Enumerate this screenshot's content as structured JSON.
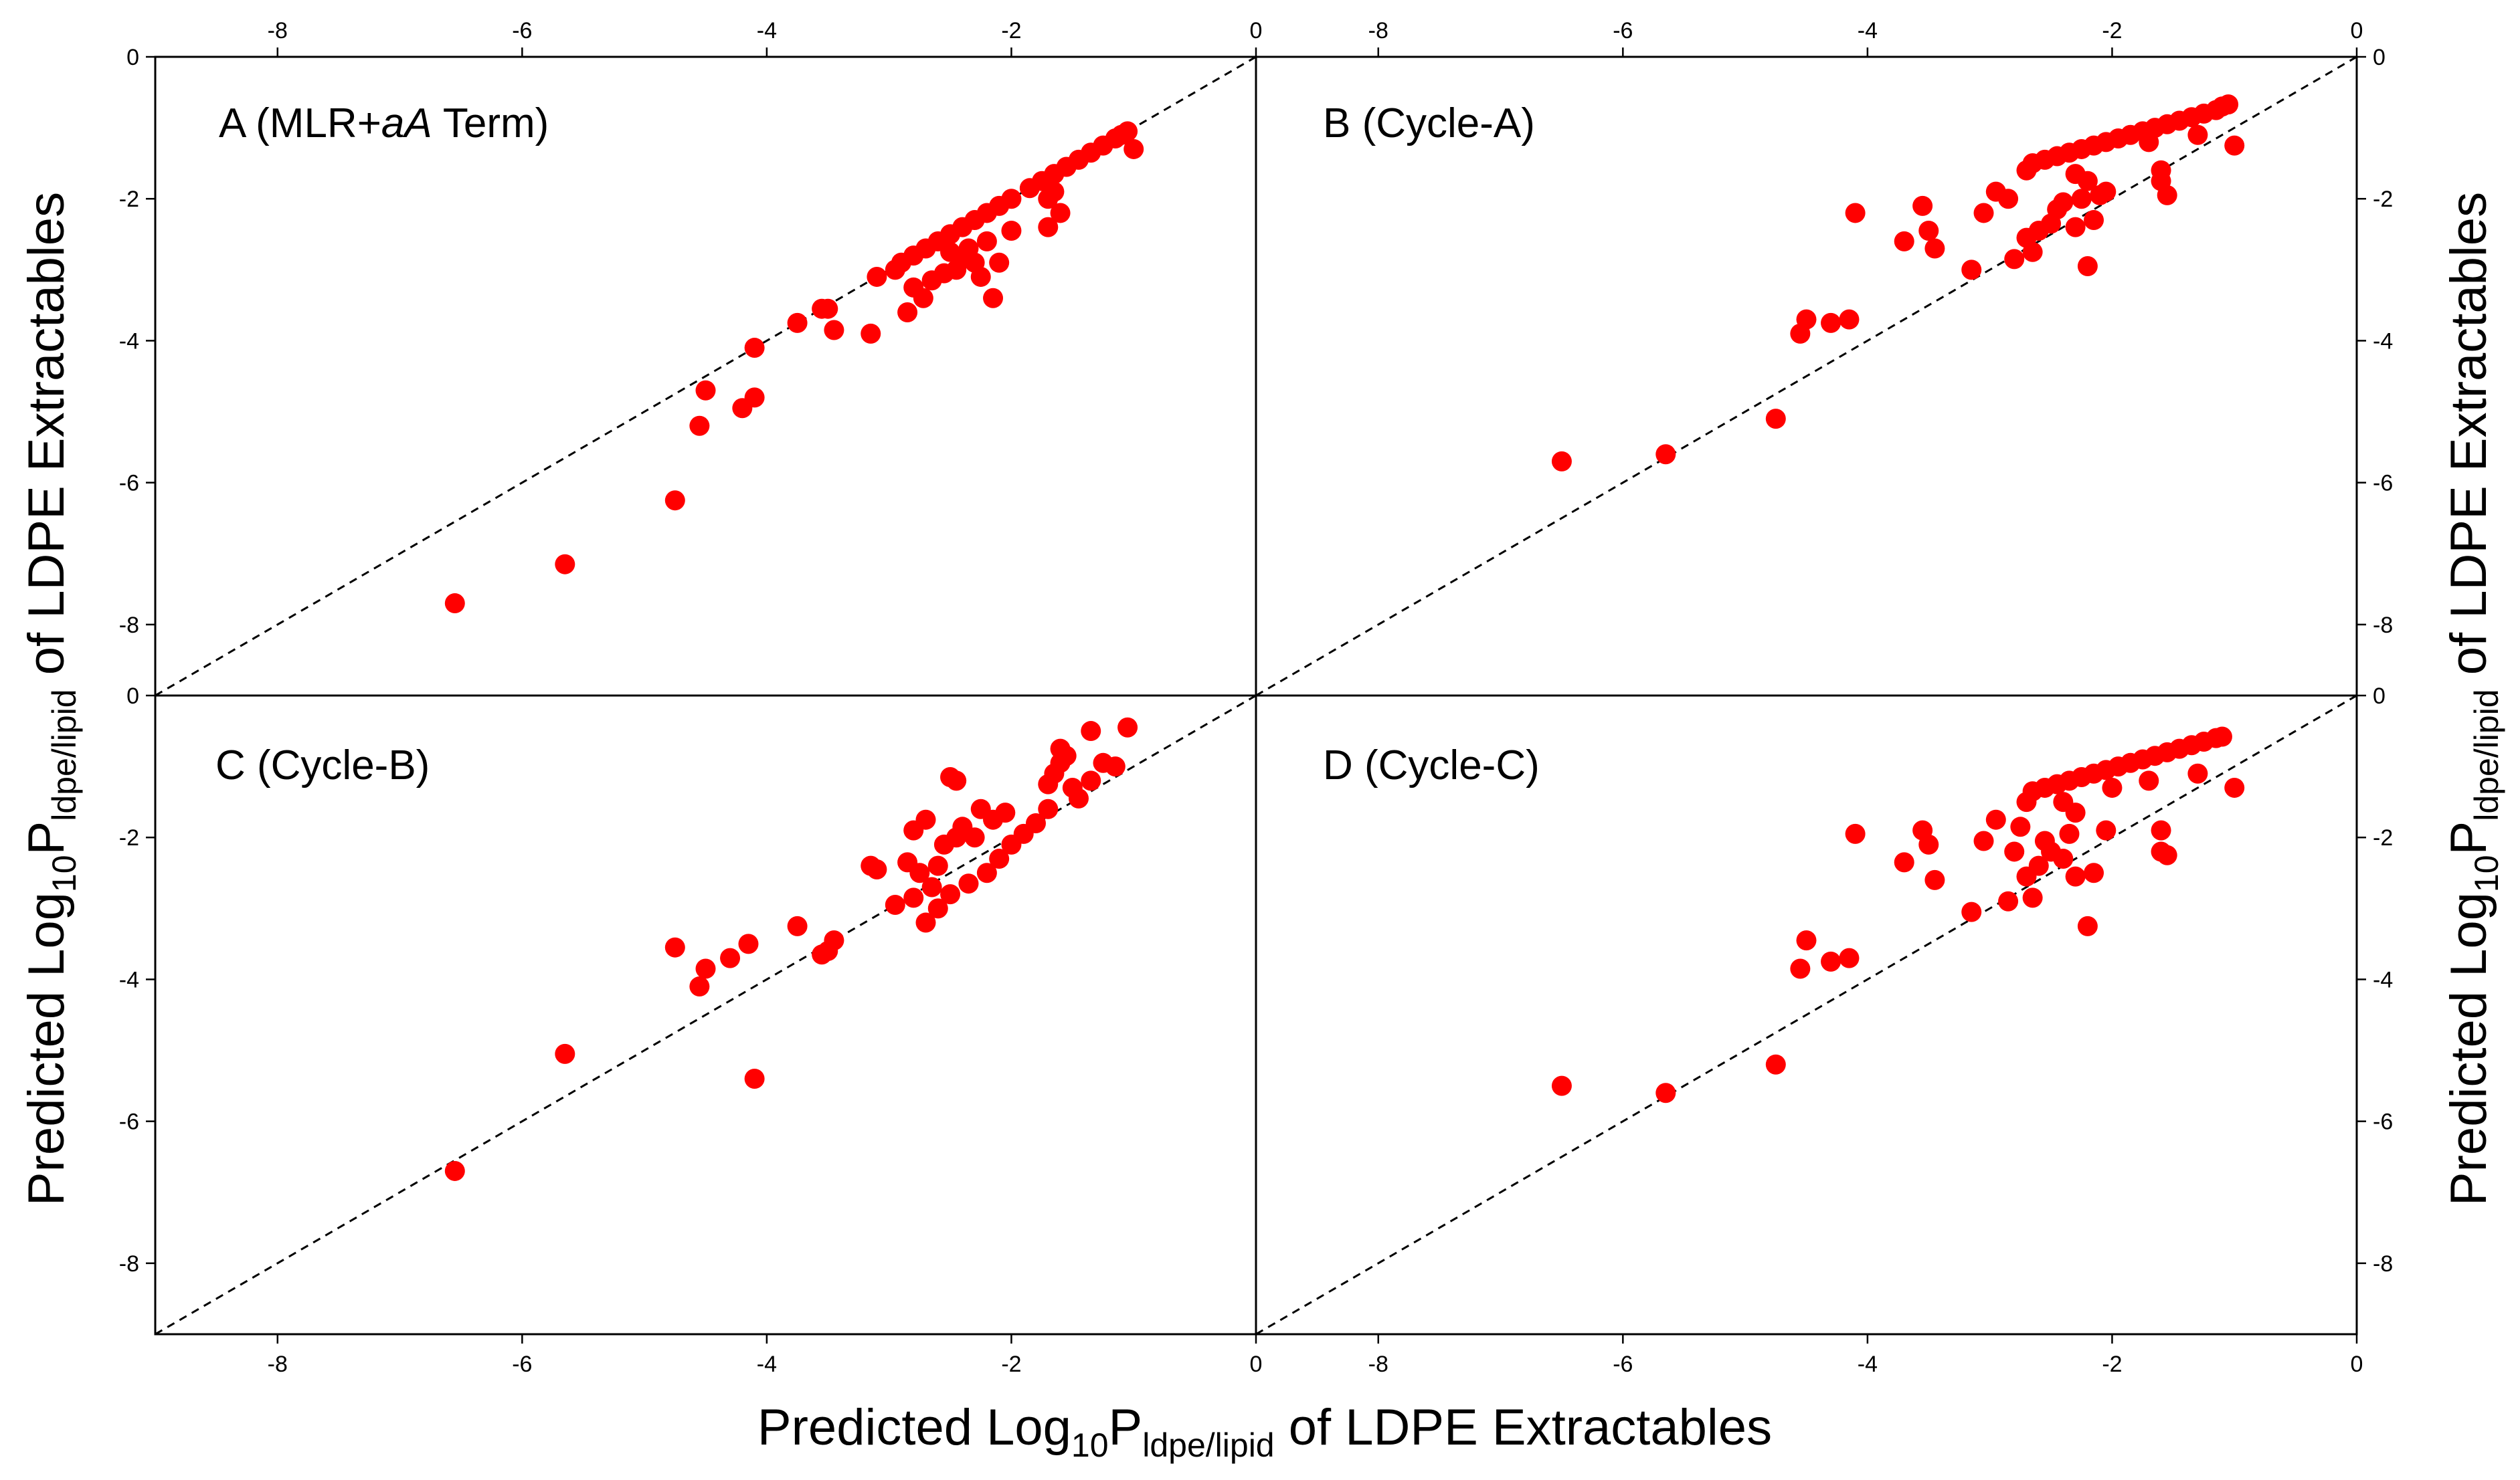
{
  "chart_data": [
    {
      "id": "A",
      "type": "scatter",
      "title": "A (MLR+aA Term)",
      "title_parts": [
        "A (MLR+",
        "aA",
        " Term)"
      ],
      "xlim": [
        -9,
        0
      ],
      "ylim": [
        -9,
        0
      ],
      "reference_line": "y = x",
      "marker_color": "#ff0000",
      "points": [
        [
          -6.55,
          -7.7
        ],
        [
          -5.65,
          -7.15
        ],
        [
          -4.75,
          -6.25
        ],
        [
          -4.55,
          -5.2
        ],
        [
          -4.2,
          -4.95
        ],
        [
          -4.5,
          -4.7
        ],
        [
          -4.1,
          -4.8
        ],
        [
          -4.1,
          -4.1
        ],
        [
          -3.75,
          -3.75
        ],
        [
          -3.55,
          -3.55
        ],
        [
          -3.5,
          -3.55
        ],
        [
          -3.45,
          -3.85
        ],
        [
          -3.15,
          -3.9
        ],
        [
          -3.1,
          -3.1
        ],
        [
          -2.85,
          -3.6
        ],
        [
          -2.8,
          -3.25
        ],
        [
          -2.72,
          -3.4
        ],
        [
          -2.65,
          -3.15
        ],
        [
          -2.55,
          -3.05
        ],
        [
          -2.45,
          -3.0
        ],
        [
          -2.3,
          -2.9
        ],
        [
          -2.25,
          -3.1
        ],
        [
          -2.15,
          -3.4
        ],
        [
          -2.1,
          -2.9
        ],
        [
          -2.35,
          -2.7
        ],
        [
          -2.4,
          -2.85
        ],
        [
          -2.5,
          -2.75
        ],
        [
          -2.2,
          -2.6
        ],
        [
          -2.0,
          -2.45
        ],
        [
          -2.9,
          -2.9
        ],
        [
          -2.8,
          -2.8
        ],
        [
          -2.7,
          -2.7
        ],
        [
          -2.6,
          -2.6
        ],
        [
          -2.5,
          -2.5
        ],
        [
          -2.4,
          -2.4
        ],
        [
          -2.3,
          -2.3
        ],
        [
          -2.2,
          -2.2
        ],
        [
          -2.1,
          -2.1
        ],
        [
          -2.0,
          -2.0
        ],
        [
          -1.85,
          -1.85
        ],
        [
          -1.75,
          -1.75
        ],
        [
          -1.65,
          -1.65
        ],
        [
          -1.55,
          -1.55
        ],
        [
          -1.45,
          -1.45
        ],
        [
          -1.35,
          -1.35
        ],
        [
          -1.25,
          -1.25
        ],
        [
          -1.15,
          -1.15
        ],
        [
          -1.1,
          -1.1
        ],
        [
          -1.05,
          -1.05
        ],
        [
          -1.7,
          -2.4
        ],
        [
          -1.6,
          -2.2
        ],
        [
          -1.65,
          -1.9
        ],
        [
          -1.7,
          -2.0
        ],
        [
          -1.0,
          -1.3
        ],
        [
          -2.95,
          -3.0
        ]
      ]
    },
    {
      "id": "B",
      "type": "scatter",
      "title": "B (Cycle-A)",
      "xlim": [
        -9,
        0
      ],
      "ylim": [
        -9,
        0
      ],
      "reference_line": "y = x",
      "marker_color": "#ff0000",
      "points": [
        [
          -6.5,
          -5.7
        ],
        [
          -5.65,
          -5.6
        ],
        [
          -4.75,
          -5.1
        ],
        [
          -4.55,
          -3.9
        ],
        [
          -4.5,
          -3.7
        ],
        [
          -4.3,
          -3.75
        ],
        [
          -4.15,
          -3.7
        ],
        [
          -4.1,
          -2.2
        ],
        [
          -3.7,
          -2.6
        ],
        [
          -3.55,
          -2.1
        ],
        [
          -3.45,
          -2.7
        ],
        [
          -3.5,
          -2.45
        ],
        [
          -3.15,
          -3.0
        ],
        [
          -3.05,
          -2.2
        ],
        [
          -2.95,
          -1.9
        ],
        [
          -2.85,
          -2.0
        ],
        [
          -2.8,
          -2.85
        ],
        [
          -2.7,
          -2.55
        ],
        [
          -2.65,
          -2.75
        ],
        [
          -2.6,
          -2.45
        ],
        [
          -2.5,
          -2.35
        ],
        [
          -2.45,
          -2.15
        ],
        [
          -2.4,
          -2.05
        ],
        [
          -2.3,
          -2.4
        ],
        [
          -2.25,
          -2.0
        ],
        [
          -2.2,
          -1.75
        ],
        [
          -2.15,
          -2.3
        ],
        [
          -2.1,
          -1.95
        ],
        [
          -2.2,
          -2.95
        ],
        [
          -2.7,
          -1.6
        ],
        [
          -2.65,
          -1.5
        ],
        [
          -2.55,
          -1.45
        ],
        [
          -2.45,
          -1.4
        ],
        [
          -2.35,
          -1.35
        ],
        [
          -2.25,
          -1.3
        ],
        [
          -2.15,
          -1.25
        ],
        [
          -2.05,
          -1.2
        ],
        [
          -1.95,
          -1.15
        ],
        [
          -1.85,
          -1.1
        ],
        [
          -1.75,
          -1.05
        ],
        [
          -1.65,
          -1.0
        ],
        [
          -1.55,
          -0.95
        ],
        [
          -1.45,
          -0.9
        ],
        [
          -1.35,
          -0.85
        ],
        [
          -1.25,
          -0.8
        ],
        [
          -1.15,
          -0.75
        ],
        [
          -1.1,
          -0.7
        ],
        [
          -1.05,
          -0.67
        ],
        [
          -1.7,
          -1.2
        ],
        [
          -1.6,
          -1.75
        ],
        [
          -1.55,
          -1.95
        ],
        [
          -1.6,
          -1.6
        ],
        [
          -1.0,
          -1.25
        ],
        [
          -2.3,
          -1.65
        ],
        [
          -2.05,
          -1.9
        ],
        [
          -1.3,
          -1.1
        ]
      ]
    },
    {
      "id": "C",
      "type": "scatter",
      "title": "C (Cycle-B)",
      "xlim": [
        -9,
        0
      ],
      "ylim": [
        -9,
        0
      ],
      "reference_line": "y = x",
      "marker_color": "#ff0000",
      "points": [
        [
          -6.55,
          -6.7
        ],
        [
          -5.65,
          -5.05
        ],
        [
          -4.75,
          -3.55
        ],
        [
          -4.55,
          -4.1
        ],
        [
          -4.5,
          -3.85
        ],
        [
          -4.3,
          -3.7
        ],
        [
          -4.15,
          -3.5
        ],
        [
          -4.1,
          -5.4
        ],
        [
          -3.75,
          -3.25
        ],
        [
          -3.55,
          -3.65
        ],
        [
          -3.5,
          -3.6
        ],
        [
          -3.45,
          -3.45
        ],
        [
          -3.15,
          -2.4
        ],
        [
          -3.1,
          -2.45
        ],
        [
          -2.95,
          -2.95
        ],
        [
          -2.85,
          -2.35
        ],
        [
          -2.8,
          -2.85
        ],
        [
          -2.75,
          -2.5
        ],
        [
          -2.7,
          -3.2
        ],
        [
          -2.65,
          -2.7
        ],
        [
          -2.6,
          -3.0
        ],
        [
          -2.55,
          -2.1
        ],
        [
          -2.5,
          -2.8
        ],
        [
          -2.45,
          -2.0
        ],
        [
          -2.4,
          -1.85
        ],
        [
          -2.35,
          -2.65
        ],
        [
          -2.3,
          -2.0
        ],
        [
          -2.25,
          -1.6
        ],
        [
          -2.2,
          -2.5
        ],
        [
          -2.15,
          -1.75
        ],
        [
          -2.1,
          -2.3
        ],
        [
          -2.05,
          -1.65
        ],
        [
          -2.0,
          -2.1
        ],
        [
          -1.9,
          -1.95
        ],
        [
          -1.8,
          -1.8
        ],
        [
          -1.7,
          -1.6
        ],
        [
          -1.65,
          -1.1
        ],
        [
          -1.6,
          -0.95
        ],
        [
          -1.55,
          -0.85
        ],
        [
          -1.5,
          -1.3
        ],
        [
          -1.45,
          -1.45
        ],
        [
          -1.35,
          -1.2
        ],
        [
          -1.25,
          -0.95
        ],
        [
          -1.15,
          -1.0
        ],
        [
          -1.05,
          -0.45
        ],
        [
          -1.35,
          -0.5
        ],
        [
          -2.45,
          -1.2
        ],
        [
          -2.5,
          -1.15
        ],
        [
          -2.8,
          -1.9
        ],
        [
          -2.7,
          -1.75
        ],
        [
          -1.6,
          -0.75
        ],
        [
          -1.7,
          -1.25
        ],
        [
          -2.6,
          -2.4
        ],
        [
          -2.4,
          -1.9
        ]
      ]
    },
    {
      "id": "D",
      "type": "scatter",
      "title": "D (Cycle-C)",
      "xlim": [
        -9,
        0
      ],
      "ylim": [
        -9,
        0
      ],
      "reference_line": "y = x",
      "marker_color": "#ff0000",
      "points": [
        [
          -6.5,
          -5.5
        ],
        [
          -5.65,
          -5.6
        ],
        [
          -4.75,
          -5.2
        ],
        [
          -4.55,
          -3.85
        ],
        [
          -4.5,
          -3.45
        ],
        [
          -4.3,
          -3.75
        ],
        [
          -4.15,
          -3.7
        ],
        [
          -4.1,
          -1.95
        ],
        [
          -3.7,
          -2.35
        ],
        [
          -3.55,
          -1.9
        ],
        [
          -3.5,
          -2.1
        ],
        [
          -3.45,
          -2.6
        ],
        [
          -3.15,
          -3.05
        ],
        [
          -3.05,
          -2.05
        ],
        [
          -2.95,
          -1.75
        ],
        [
          -2.85,
          -2.9
        ],
        [
          -2.8,
          -2.2
        ],
        [
          -2.75,
          -1.85
        ],
        [
          -2.7,
          -2.55
        ],
        [
          -2.65,
          -2.85
        ],
        [
          -2.6,
          -2.4
        ],
        [
          -2.55,
          -2.05
        ],
        [
          -2.5,
          -2.2
        ],
        [
          -2.4,
          -2.3
        ],
        [
          -2.35,
          -1.95
        ],
        [
          -2.3,
          -2.55
        ],
        [
          -2.2,
          -3.25
        ],
        [
          -2.15,
          -2.5
        ],
        [
          -2.7,
          -1.5
        ],
        [
          -2.65,
          -1.35
        ],
        [
          -2.55,
          -1.3
        ],
        [
          -2.45,
          -1.25
        ],
        [
          -2.35,
          -1.2
        ],
        [
          -2.25,
          -1.15
        ],
        [
          -2.15,
          -1.1
        ],
        [
          -2.05,
          -1.05
        ],
        [
          -1.95,
          -1.0
        ],
        [
          -1.85,
          -0.95
        ],
        [
          -1.75,
          -0.9
        ],
        [
          -1.65,
          -0.85
        ],
        [
          -1.55,
          -0.8
        ],
        [
          -1.45,
          -0.75
        ],
        [
          -1.35,
          -0.7
        ],
        [
          -1.25,
          -0.65
        ],
        [
          -1.15,
          -0.6
        ],
        [
          -1.1,
          -0.58
        ],
        [
          -1.7,
          -1.2
        ],
        [
          -1.6,
          -1.9
        ],
        [
          -1.55,
          -2.25
        ],
        [
          -1.6,
          -2.2
        ],
        [
          -1.0,
          -1.3
        ],
        [
          -2.3,
          -1.65
        ],
        [
          -2.05,
          -1.9
        ],
        [
          -1.3,
          -1.1
        ],
        [
          -2.4,
          -1.5
        ],
        [
          -2.0,
          -1.3
        ]
      ]
    }
  ],
  "axes": {
    "x_ticks": [
      -8,
      -6,
      -4,
      -2,
      0
    ],
    "y_ticks": [
      0,
      -2,
      -4,
      -6,
      -8
    ],
    "x_title": {
      "main": "Predicted Log",
      "sub1": "10",
      "mid": "P",
      "sub2": "ldpe/lipid",
      "tail": " of LDPE Extractables"
    },
    "y_title": {
      "main": "Predicted Log",
      "sub1": "10",
      "mid": "P",
      "sub2": "ldpe/lipid",
      "tail": " of LDPE Extractables"
    }
  }
}
